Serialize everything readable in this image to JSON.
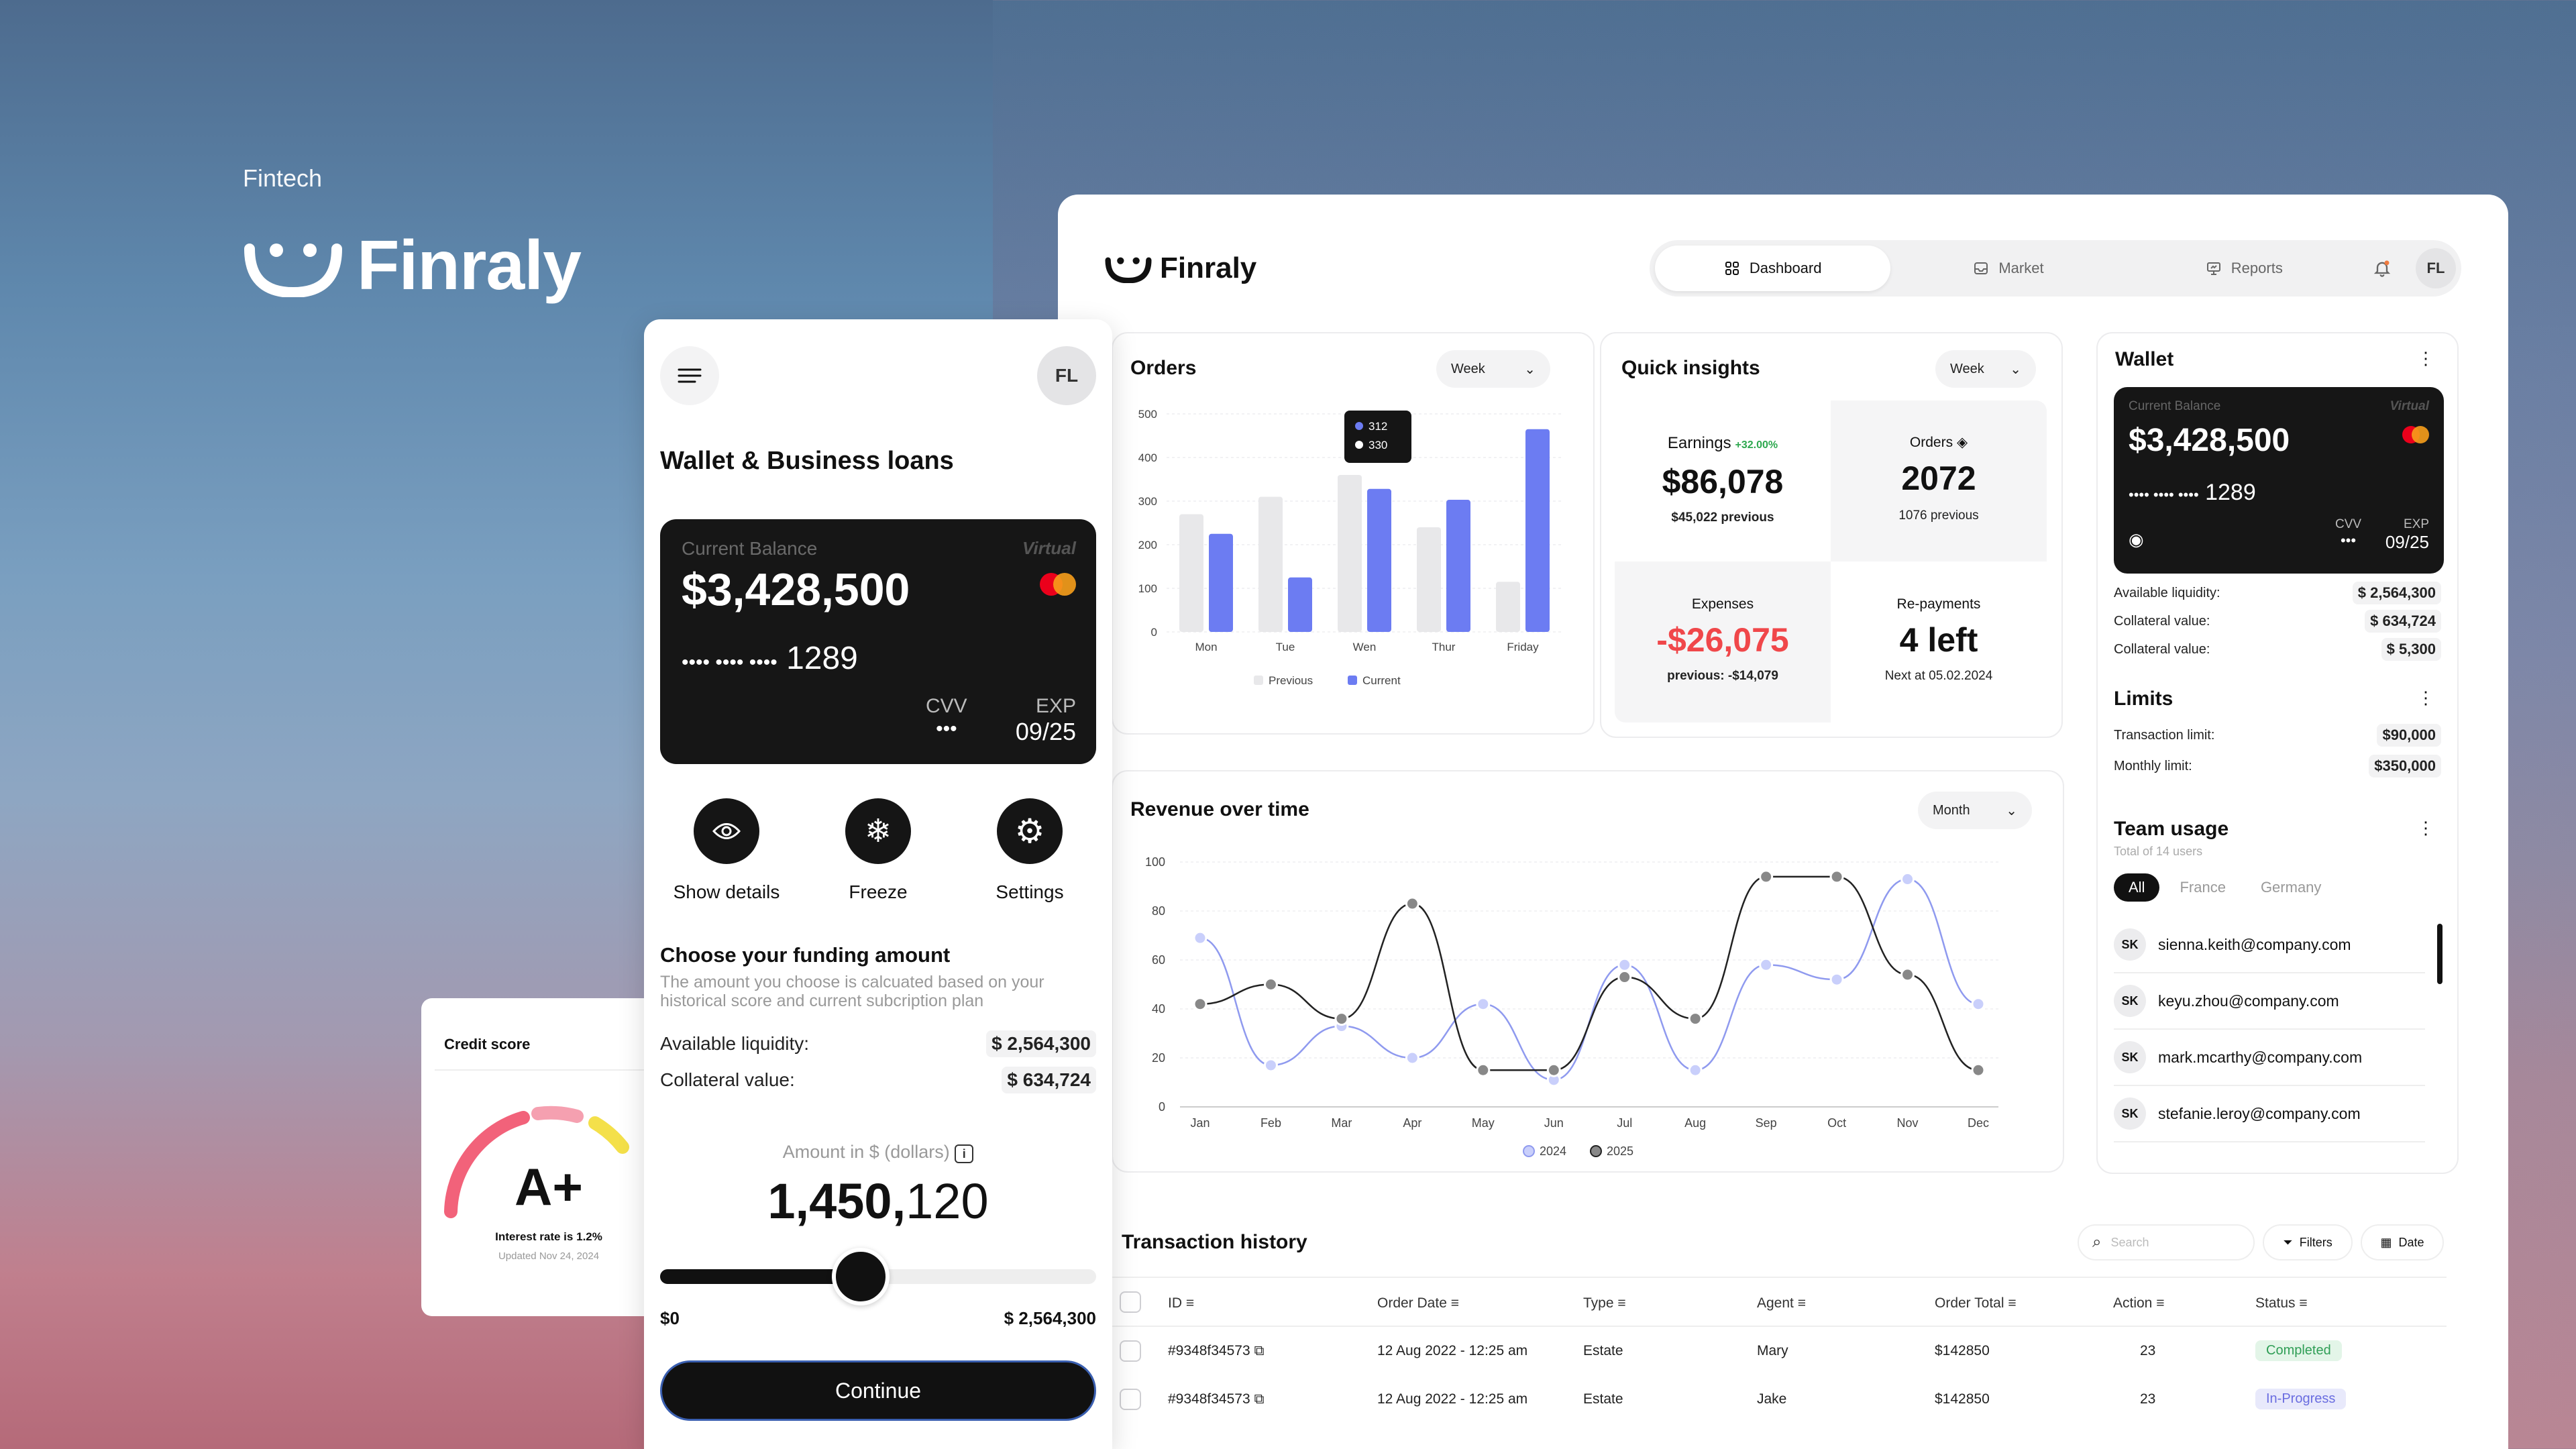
{
  "brand": {
    "tag": "Fintech",
    "name": "Finraly"
  },
  "dashboard": {
    "logo_name": "Finraly",
    "nav": [
      {
        "label": "Dashboard",
        "icon": "grid-icon"
      },
      {
        "label": "Market",
        "icon": "inbox-icon"
      },
      {
        "label": "Reports",
        "icon": "presentation-icon"
      }
    ],
    "avatar": "FL",
    "orders": {
      "title": "Orders",
      "period": "Week",
      "tooltip": {
        "a": "312",
        "b": "330"
      },
      "legend": {
        "previous": "Previous",
        "current": "Current"
      }
    },
    "insights": {
      "title": "Quick insights",
      "period": "Week",
      "earnings": {
        "label": "Earnings",
        "delta": "+32.00%",
        "value": "$86,078",
        "sub": "$45,022 previous"
      },
      "orders": {
        "label": "Orders",
        "value": "2072",
        "sub": "1076 previous"
      },
      "expenses": {
        "label": "Expenses",
        "value": "-$26,075",
        "sub": "previous: -$14,079"
      },
      "repayments": {
        "label": "Re-payments",
        "value": "4 left",
        "sub": "Next at 05.02.2024"
      }
    },
    "revenue": {
      "title": "Revenue over time",
      "period": "Month"
    },
    "wallet": {
      "title": "Wallet",
      "card": {
        "label": "Current Balance",
        "virtual": "Virtual",
        "balance": "$3,428,500",
        "dots": "•••• •••• ••••",
        "last4": "1289",
        "cvv_label": "CVV",
        "cvv": "•••",
        "exp_label": "EXP",
        "exp": "09/25"
      },
      "rows": [
        {
          "label": "Available liquidity:",
          "value": "$ 2,564,300"
        },
        {
          "label": "Collateral value:",
          "value": "$ 634,724"
        },
        {
          "label": "Collateral value:",
          "value": "$ 5,300"
        }
      ]
    },
    "limits": {
      "title": "Limits",
      "rows": [
        {
          "label": "Transaction limit:",
          "value": "$90,000"
        },
        {
          "label": "Monthly limit:",
          "value": "$350,000"
        }
      ]
    },
    "team": {
      "title": "Team usage",
      "subtitle": "Total of 14 users",
      "filters": [
        "All",
        "France",
        "Germany"
      ],
      "members": [
        {
          "initials": "SK",
          "email": "sienna.keith@company.com"
        },
        {
          "initials": "SK",
          "email": "keyu.zhou@company.com"
        },
        {
          "initials": "SK",
          "email": "mark.mcarthy@company.com"
        },
        {
          "initials": "SK",
          "email": "stefanie.leroy@company.com"
        }
      ]
    },
    "transactions": {
      "title": "Transaction history",
      "search_placeholder": "Search",
      "filters_label": "Filters",
      "date_label": "Date",
      "columns": [
        "ID",
        "Order Date",
        "Type",
        "Agent",
        "Order Total",
        "Action",
        "Status"
      ],
      "rows": [
        {
          "id": "#9348f34573",
          "date": "12 Aug 2022 - 12:25 am",
          "type": "Estate",
          "agent": "Mary",
          "total": "$142850",
          "action": "23",
          "status": "Completed",
          "status_color": "#2f9e56",
          "status_bg": "#e3f5e8"
        },
        {
          "id": "#9348f34573",
          "date": "12 Aug 2022 - 12:25 am",
          "type": "Estate",
          "agent": "Jake",
          "total": "$142850",
          "action": "23",
          "status": "In-Progress",
          "status_color": "#6a6de0",
          "status_bg": "#e8e9fb"
        }
      ]
    }
  },
  "mobile": {
    "avatar": "FL",
    "title": "Wallet & Business loans",
    "card": {
      "label": "Current Balance",
      "virtual": "Virtual",
      "balance": "$3,428,500",
      "dots": "•••• •••• ••••",
      "last4": "1289",
      "cvv_label": "CVV",
      "cvv": "•••",
      "exp_label": "EXP",
      "exp": "09/25"
    },
    "actions": [
      {
        "label": "Show details",
        "icon": "eye-icon"
      },
      {
        "label": "Freeze",
        "icon": "snowflake-icon"
      },
      {
        "label": "Settings",
        "icon": "gear-icon"
      }
    ],
    "funding": {
      "title": "Choose your funding amount",
      "desc": "The amount you choose is calcuated based on your historical score and current subcription plan",
      "rows": [
        {
          "label": "Available liquidity:",
          "value": "$ 2,564,300"
        },
        {
          "label": "Collateral value:",
          "value": "$ 634,724"
        }
      ],
      "amount_label": "Amount in $ (dollars)",
      "amount_bold": "1,450,",
      "amount_light": "120",
      "slider_level": 0.46,
      "min": "$0",
      "max": "$ 2,564,300"
    },
    "continue": "Continue"
  },
  "credit": {
    "title": "Credit score",
    "grade": "A+",
    "interest_label": "Interest rate is",
    "interest": "1.2%",
    "updated": "Updated Nov 24, 2024"
  },
  "colors": {
    "accent": "#6c7cf2",
    "dark": "#151515",
    "negative": "#f0474a",
    "positive": "#2ea84f"
  },
  "chart_data": [
    {
      "type": "bar",
      "categories": [
        "Mon",
        "Tue",
        "Wen",
        "Thur",
        "Friday"
      ],
      "series": [
        {
          "name": "Previous",
          "values": [
            270,
            310,
            360,
            240,
            115
          ]
        },
        {
          "name": "Current",
          "values": [
            225,
            125,
            328,
            303,
            465
          ]
        }
      ],
      "ylim": [
        0,
        500
      ],
      "yticks": [
        0,
        100,
        200,
        300,
        400,
        500
      ]
    },
    {
      "type": "line",
      "categories": [
        "Jan",
        "Feb",
        "Mar",
        "Apr",
        "May",
        "Jun",
        "Jul",
        "Aug",
        "Sep",
        "Oct",
        "Nov",
        "Dec"
      ],
      "series": [
        {
          "name": "2024",
          "values": [
            69,
            17,
            33,
            20,
            42,
            11,
            58,
            15,
            58,
            52,
            93,
            42
          ]
        },
        {
          "name": "2025",
          "values": [
            42,
            50,
            36,
            83,
            15,
            15,
            53,
            36,
            94,
            94,
            54,
            15
          ]
        }
      ],
      "ylim": [
        0,
        100
      ],
      "yticks": [
        0,
        20,
        40,
        60,
        80,
        100
      ]
    }
  ]
}
